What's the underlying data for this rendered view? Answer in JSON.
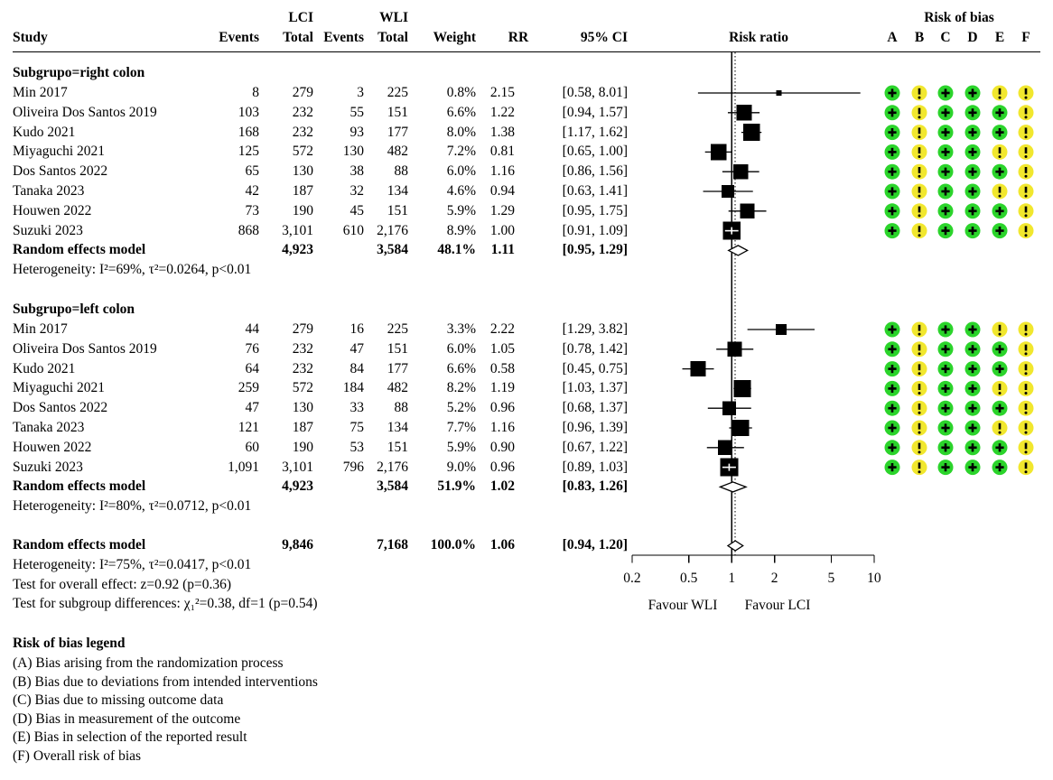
{
  "header": {
    "study": "Study",
    "lci": "LCI",
    "wli": "WLI",
    "events": "Events",
    "total": "Total",
    "weight": "Weight",
    "rr": "RR",
    "ci": "95% CI",
    "risk_ratio": "Risk ratio",
    "risk_of_bias": "Risk of bias",
    "bias_cols": [
      "A",
      "B",
      "C",
      "D",
      "E",
      "F"
    ]
  },
  "chart_data": {
    "type": "forest",
    "x_scale": "log",
    "x_ticks": [
      "0.2",
      "0.5",
      "1",
      "2",
      "5",
      "10"
    ],
    "x_range": [
      0.2,
      10
    ],
    "null_line": 1,
    "pooled_line": 1.06,
    "favour_left": "Favour WLI",
    "favour_right": "Favour LCI",
    "subgroups": [
      {
        "label": "Subgrupo=right colon",
        "studies": [
          {
            "study": "Min 2017",
            "lci_events": "8",
            "lci_total": "279",
            "wli_events": "3",
            "wli_total": "225",
            "weight": "0.8%",
            "weight_pct": 0.8,
            "rr": 2.15,
            "rr_text": "2.15",
            "ci_low": 0.58,
            "ci_high": 8.01,
            "ci_text": "[0.58, 8.01]",
            "bias": [
              "+",
              "!",
              "+",
              "+",
              "!",
              "!"
            ]
          },
          {
            "study": "Oliveira Dos Santos 2019",
            "lci_events": "103",
            "lci_total": "232",
            "wli_events": "55",
            "wli_total": "151",
            "weight": "6.6%",
            "weight_pct": 6.6,
            "rr": 1.22,
            "rr_text": "1.22",
            "ci_low": 0.94,
            "ci_high": 1.57,
            "ci_text": "[0.94, 1.57]",
            "bias": [
              "+",
              "!",
              "+",
              "+",
              "+",
              "!"
            ]
          },
          {
            "study": "Kudo 2021",
            "lci_events": "168",
            "lci_total": "232",
            "wli_events": "93",
            "wli_total": "177",
            "weight": "8.0%",
            "weight_pct": 8.0,
            "rr": 1.38,
            "rr_text": "1.38",
            "ci_low": 1.17,
            "ci_high": 1.62,
            "ci_text": "[1.17, 1.62]",
            "bias": [
              "+",
              "!",
              "+",
              "+",
              "+",
              "!"
            ]
          },
          {
            "study": "Miyaguchi 2021",
            "lci_events": "125",
            "lci_total": "572",
            "wli_events": "130",
            "wli_total": "482",
            "weight": "7.2%",
            "weight_pct": 7.2,
            "rr": 0.81,
            "rr_text": "0.81",
            "ci_low": 0.65,
            "ci_high": 1.0,
            "ci_text": "[0.65, 1.00]",
            "bias": [
              "+",
              "!",
              "+",
              "+",
              "!",
              "!"
            ]
          },
          {
            "study": "Dos Santos 2022",
            "lci_events": "65",
            "lci_total": "130",
            "wli_events": "38",
            "wli_total": "88",
            "weight": "6.0%",
            "weight_pct": 6.0,
            "rr": 1.16,
            "rr_text": "1.16",
            "ci_low": 0.86,
            "ci_high": 1.56,
            "ci_text": "[0.86, 1.56]",
            "bias": [
              "+",
              "!",
              "+",
              "+",
              "+",
              "!"
            ]
          },
          {
            "study": "Tanaka 2023",
            "lci_events": "42",
            "lci_total": "187",
            "wli_events": "32",
            "wli_total": "134",
            "weight": "4.6%",
            "weight_pct": 4.6,
            "rr": 0.94,
            "rr_text": "0.94",
            "ci_low": 0.63,
            "ci_high": 1.41,
            "ci_text": "[0.63, 1.41]",
            "bias": [
              "+",
              "!",
              "+",
              "+",
              "!",
              "!"
            ]
          },
          {
            "study": "Houwen 2022",
            "lci_events": "73",
            "lci_total": "190",
            "wli_events": "45",
            "wli_total": "151",
            "weight": "5.9%",
            "weight_pct": 5.9,
            "rr": 1.29,
            "rr_text": "1.29",
            "ci_low": 0.95,
            "ci_high": 1.75,
            "ci_text": "[0.95, 1.75]",
            "bias": [
              "+",
              "!",
              "+",
              "+",
              "+",
              "!"
            ]
          },
          {
            "study": "Suzuki 2023",
            "lci_events": "868",
            "lci_total": "3,101",
            "wli_events": "610",
            "wli_total": "2,176",
            "weight": "8.9%",
            "weight_pct": 8.9,
            "rr": 1.0,
            "rr_text": "1.00",
            "ci_low": 0.91,
            "ci_high": 1.09,
            "ci_text": "[0.91, 1.09]",
            "bias": [
              "+",
              "!",
              "+",
              "+",
              "+",
              "!"
            ]
          }
        ],
        "summary": {
          "label": "Random effects model",
          "lci_total": "4,923",
          "wli_total": "3,584",
          "weight": "48.1%",
          "rr": 1.11,
          "rr_text": "1.11",
          "ci_low": 0.95,
          "ci_high": 1.29,
          "ci_text": "[0.95, 1.29]"
        },
        "heterogeneity": "Heterogeneity: I²=69%, τ²=0.0264, p<0.01"
      },
      {
        "label": "Subgrupo=left colon",
        "studies": [
          {
            "study": "Min 2017",
            "lci_events": "44",
            "lci_total": "279",
            "wli_events": "16",
            "wli_total": "225",
            "weight": "3.3%",
            "weight_pct": 3.3,
            "rr": 2.22,
            "rr_text": "2.22",
            "ci_low": 1.29,
            "ci_high": 3.82,
            "ci_text": "[1.29, 3.82]",
            "bias": [
              "+",
              "!",
              "+",
              "+",
              "!",
              "!"
            ]
          },
          {
            "study": "Oliveira Dos Santos 2019",
            "lci_events": "76",
            "lci_total": "232",
            "wli_events": "47",
            "wli_total": "151",
            "weight": "6.0%",
            "weight_pct": 6.0,
            "rr": 1.05,
            "rr_text": "1.05",
            "ci_low": 0.78,
            "ci_high": 1.42,
            "ci_text": "[0.78, 1.42]",
            "bias": [
              "+",
              "!",
              "+",
              "+",
              "+",
              "!"
            ]
          },
          {
            "study": "Kudo 2021",
            "lci_events": "64",
            "lci_total": "232",
            "wli_events": "84",
            "wli_total": "177",
            "weight": "6.6%",
            "weight_pct": 6.6,
            "rr": 0.58,
            "rr_text": "0.58",
            "ci_low": 0.45,
            "ci_high": 0.75,
            "ci_text": "[0.45, 0.75]",
            "bias": [
              "+",
              "!",
              "+",
              "+",
              "+",
              "!"
            ]
          },
          {
            "study": "Miyaguchi 2021",
            "lci_events": "259",
            "lci_total": "572",
            "wli_events": "184",
            "wli_total": "482",
            "weight": "8.2%",
            "weight_pct": 8.2,
            "rr": 1.19,
            "rr_text": "1.19",
            "ci_low": 1.03,
            "ci_high": 1.37,
            "ci_text": "[1.03, 1.37]",
            "bias": [
              "+",
              "!",
              "+",
              "+",
              "!",
              "!"
            ]
          },
          {
            "study": "Dos Santos 2022",
            "lci_events": "47",
            "lci_total": "130",
            "wli_events": "33",
            "wli_total": "88",
            "weight": "5.2%",
            "weight_pct": 5.2,
            "rr": 0.96,
            "rr_text": "0.96",
            "ci_low": 0.68,
            "ci_high": 1.37,
            "ci_text": "[0.68, 1.37]",
            "bias": [
              "+",
              "!",
              "+",
              "+",
              "+",
              "!"
            ]
          },
          {
            "study": "Tanaka 2023",
            "lci_events": "121",
            "lci_total": "187",
            "wli_events": "75",
            "wli_total": "134",
            "weight": "7.7%",
            "weight_pct": 7.7,
            "rr": 1.16,
            "rr_text": "1.16",
            "ci_low": 0.96,
            "ci_high": 1.39,
            "ci_text": "[0.96, 1.39]",
            "bias": [
              "+",
              "!",
              "+",
              "+",
              "!",
              "!"
            ]
          },
          {
            "study": "Houwen 2022",
            "lci_events": "60",
            "lci_total": "190",
            "wli_events": "53",
            "wli_total": "151",
            "weight": "5.9%",
            "weight_pct": 5.9,
            "rr": 0.9,
            "rr_text": "0.90",
            "ci_low": 0.67,
            "ci_high": 1.22,
            "ci_text": "[0.67, 1.22]",
            "bias": [
              "+",
              "!",
              "+",
              "+",
              "+",
              "!"
            ]
          },
          {
            "study": "Suzuki 2023",
            "lci_events": "1,091",
            "lci_total": "3,101",
            "wli_events": "796",
            "wli_total": "2,176",
            "weight": "9.0%",
            "weight_pct": 9.0,
            "rr": 0.96,
            "rr_text": "0.96",
            "ci_low": 0.89,
            "ci_high": 1.03,
            "ci_text": "[0.89, 1.03]",
            "bias": [
              "+",
              "!",
              "+",
              "+",
              "+",
              "!"
            ]
          }
        ],
        "summary": {
          "label": "Random effects model",
          "lci_total": "4,923",
          "wli_total": "3,584",
          "weight": "51.9%",
          "rr": 1.02,
          "rr_text": "1.02",
          "ci_low": 0.83,
          "ci_high": 1.26,
          "ci_text": "[0.83, 1.26]"
        },
        "heterogeneity": "Heterogeneity: I²=80%, τ²=0.0712, p<0.01"
      }
    ],
    "overall": {
      "label": "Random effects model",
      "lci_total": "9,846",
      "wli_total": "7,168",
      "weight": "100.0%",
      "rr": 1.06,
      "rr_text": "1.06",
      "ci_low": 0.94,
      "ci_high": 1.2,
      "ci_text": "[0.94, 1.20]"
    },
    "overall_heterogeneity": "Heterogeneity: I²=75%, τ²=0.0417, p<0.01",
    "tests": [
      "Test for overall effect: z=0.92 (p=0.36)",
      "Test for subgroup differences: χ₁²=0.38, df=1 (p=0.54)"
    ]
  },
  "bias_legend": {
    "title": "Risk of bias legend",
    "items": [
      "(A) Bias arising from the randomization process",
      "(B) Bias due to deviations from intended interventions",
      "(C) Bias due to missing outcome data",
      "(D) Bias in measurement of the outcome",
      "(E) Bias in selection of the reported result",
      "(F) Overall risk of bias"
    ]
  },
  "colors": {
    "low_risk": "#2BD42B",
    "some_concerns": "#F1E72E",
    "marker": "#000000"
  }
}
